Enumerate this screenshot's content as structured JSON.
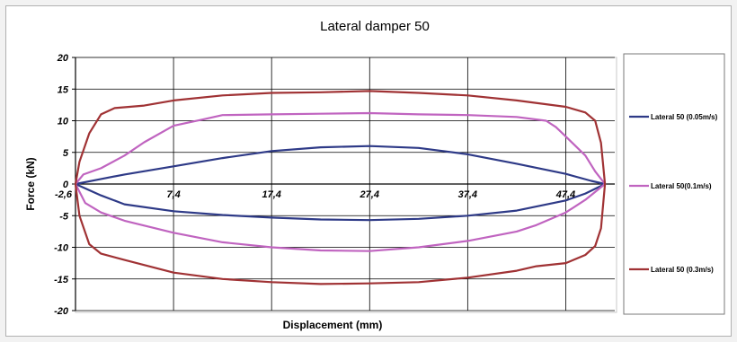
{
  "chart_data": {
    "type": "line",
    "title": "Lateral damper 50",
    "xlabel": "Displacement  (mm)",
    "ylabel": "Force  (kN)",
    "xlim": [
      -2.6,
      52.4
    ],
    "ylim": [
      -20,
      20
    ],
    "xticks": [
      -2.6,
      7.4,
      17.4,
      27.4,
      37.4,
      47.4
    ],
    "xtick_labels": [
      "-2,6",
      "7,4",
      "17,4",
      "27,4",
      "37,4",
      "47,4"
    ],
    "yticks": [
      20,
      15,
      10,
      5,
      0,
      -5,
      -10,
      -15,
      -20
    ],
    "grid": true,
    "legend_position": "right",
    "series": [
      {
        "name": "Lateral 50 (0.05m/s)",
        "color": "#2e3a87",
        "x": [
          -2.6,
          0,
          2.4,
          7.4,
          12.4,
          17.4,
          22.4,
          27.4,
          32.4,
          37.4,
          42.4,
          47.4,
          50,
          51.4,
          49.4,
          47.4,
          42.4,
          37.4,
          32.4,
          27.4,
          22.4,
          17.4,
          12.4,
          7.4,
          2.4,
          0,
          -2.6
        ],
        "y": [
          0,
          0.8,
          1.5,
          2.8,
          4.1,
          5.2,
          5.8,
          6.0,
          5.7,
          4.7,
          3.2,
          1.6,
          0.5,
          0,
          -1.5,
          -2.6,
          -4.2,
          -5.0,
          -5.5,
          -5.7,
          -5.6,
          -5.3,
          -4.9,
          -4.3,
          -3.2,
          -1.8,
          0
        ]
      },
      {
        "name": "Lateral 50(0.1m/s)",
        "color": "#c064c0",
        "x": [
          -2.6,
          -1.8,
          0,
          2.4,
          4.4,
          7.4,
          10.4,
          12.4,
          17.4,
          22.4,
          27.4,
          32.4,
          37.4,
          42.4,
          45.4,
          46.4,
          47.4,
          49.4,
          50.4,
          51.4,
          49.4,
          47.4,
          44.4,
          42.4,
          37.4,
          32.4,
          27.4,
          22.4,
          17.4,
          12.4,
          7.4,
          2.4,
          0,
          -1.6,
          -2.6
        ],
        "y": [
          0,
          1.5,
          2.5,
          4.5,
          6.6,
          9.2,
          10.2,
          10.9,
          11.0,
          11.1,
          11.2,
          11.0,
          10.9,
          10.6,
          10.0,
          9.0,
          7.5,
          4.5,
          2.0,
          0,
          -2.5,
          -4.5,
          -6.5,
          -7.5,
          -9.0,
          -10.0,
          -10.6,
          -10.5,
          -10.0,
          -9.2,
          -7.7,
          -5.8,
          -4.5,
          -3.0,
          0
        ]
      },
      {
        "name": "Lateral 50 (0.3m/s)",
        "color": "#a03234",
        "x": [
          -2.6,
          -2.2,
          -1.2,
          0,
          1.4,
          4.4,
          7.4,
          12.4,
          17.4,
          22.4,
          27.4,
          32.4,
          37.4,
          42.4,
          47.4,
          49.4,
          50.4,
          51.0,
          51.4,
          51.0,
          50.4,
          49.4,
          47.4,
          44.4,
          42.4,
          37.4,
          32.4,
          27.4,
          22.4,
          17.4,
          12.4,
          7.4,
          2.4,
          0,
          -1.2,
          -2.2,
          -2.6
        ],
        "y": [
          0,
          3.5,
          8.0,
          11.0,
          12.0,
          12.4,
          13.2,
          14.0,
          14.4,
          14.5,
          14.7,
          14.4,
          14.0,
          13.2,
          12.2,
          11.3,
          10.0,
          6.5,
          0,
          -7.0,
          -9.8,
          -11.2,
          -12.5,
          -13.0,
          -13.7,
          -14.8,
          -15.5,
          -15.7,
          -15.8,
          -15.5,
          -15.0,
          -14.0,
          -12.0,
          -11.0,
          -9.5,
          -5.0,
          0
        ]
      }
    ]
  }
}
